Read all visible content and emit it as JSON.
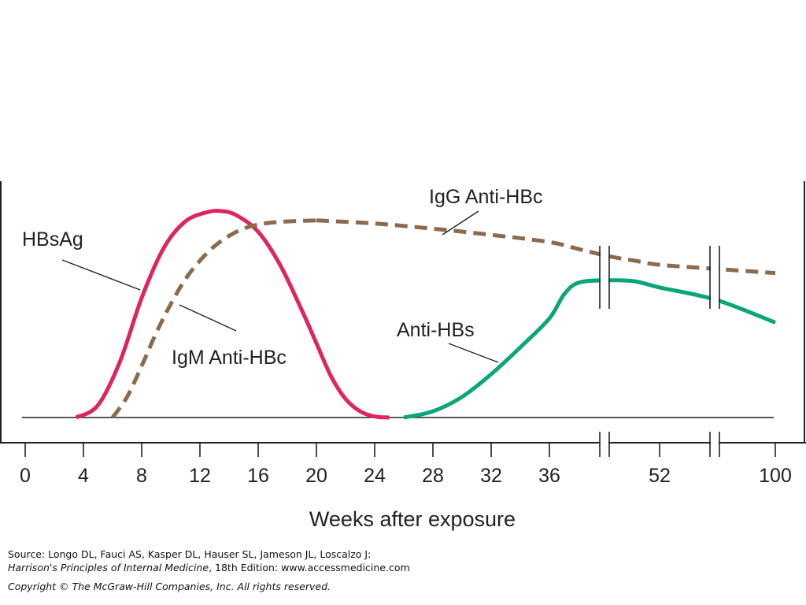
{
  "chart_data": {
    "type": "line",
    "xlabel": "Weeks after exposure",
    "ylabel": "",
    "x_ticks": [
      "0",
      "4",
      "8",
      "12",
      "16",
      "20",
      "24",
      "28",
      "32",
      "36",
      "52",
      "100"
    ],
    "series": [
      {
        "name": "HBsAg",
        "color": "#e0245e",
        "style": "solid",
        "x": [
          3.5,
          5,
          6.5,
          8,
          9.5,
          11,
          12.5,
          13.5,
          14.5,
          16,
          17.5,
          19,
          20,
          21,
          22,
          23,
          24,
          25
        ],
        "y": [
          0.0,
          0.06,
          0.27,
          0.58,
          0.82,
          0.95,
          0.995,
          1.0,
          0.98,
          0.9,
          0.74,
          0.52,
          0.36,
          0.2,
          0.09,
          0.03,
          0.005,
          0.0
        ]
      },
      {
        "name": "IgM Anti-HBc",
        "color": "#8b6a4e",
        "style": "dashed",
        "x": [
          6,
          7,
          8,
          9,
          10,
          11,
          12,
          13,
          14,
          15,
          16,
          17,
          18,
          19,
          20
        ],
        "y": [
          0.0,
          0.1,
          0.25,
          0.41,
          0.55,
          0.67,
          0.76,
          0.83,
          0.88,
          0.915,
          0.935,
          0.945,
          0.95,
          0.953,
          0.955
        ]
      },
      {
        "name": "IgG Anti-HBc",
        "color": "#8b6a4e",
        "style": "dashed",
        "x": [
          20,
          24,
          28,
          32,
          36,
          40,
          44,
          48,
          52,
          60,
          100
        ],
        "y": [
          0.955,
          0.94,
          0.915,
          0.885,
          0.85,
          0.815,
          0.78,
          0.76,
          0.74,
          0.72,
          0.7
        ]
      },
      {
        "name": "Anti-HBs",
        "color": "#0aa67a",
        "style": "solid",
        "x": [
          26,
          28,
          30,
          32,
          34,
          36,
          38,
          40,
          44,
          48,
          52,
          60,
          100
        ],
        "y": [
          0.0,
          0.03,
          0.1,
          0.21,
          0.34,
          0.48,
          0.6,
          0.655,
          0.665,
          0.66,
          0.63,
          0.57,
          0.46
        ]
      }
    ],
    "annotations": [
      "HBsAg",
      "IgM Anti-HBc",
      "IgG Anti-HBc",
      "Anti-HBs"
    ],
    "grid": false,
    "legend": "none",
    "axis_breaks": [
      "between 36 and 52",
      "between 52 and 100"
    ]
  },
  "labels": {
    "hbsag": "HBsAg",
    "igm": "IgM Anti-HBc",
    "igg": "IgG Anti-HBc",
    "antihbs": "Anti-HBs"
  },
  "source": {
    "line1": "Source: Longo DL, Fauci AS, Kasper DL, Hauser SL, Jameson JL, Loscalzo J:",
    "line2_title": "Harrison's Principles of Internal Medicine",
    "line2_rest": ", 18th Edition: www.accessmedicine.com",
    "copyright": "Copyright © The McGraw-Hill Companies, Inc. All rights reserved."
  }
}
